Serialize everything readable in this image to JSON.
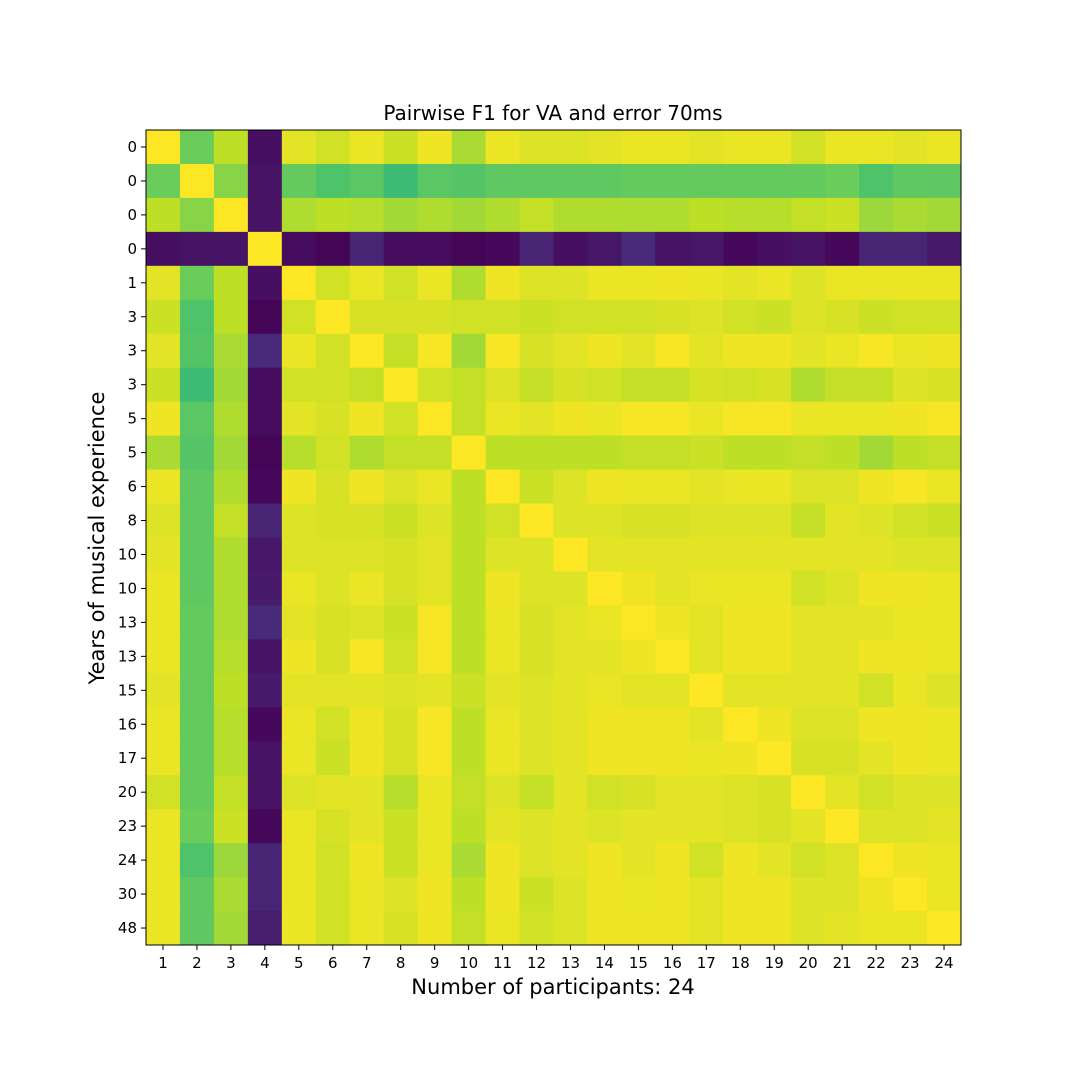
{
  "chart_data": {
    "type": "heatmap",
    "title": "Pairwise F1 for VA and error 70ms",
    "xlabel": "Number of participants: 24",
    "ylabel": "Years of musical experience",
    "colormap": "viridis",
    "value_note_range": [
      0,
      1
    ],
    "x_tick_labels": [
      "1",
      "2",
      "3",
      "4",
      "5",
      "6",
      "7",
      "8",
      "9",
      "10",
      "11",
      "12",
      "13",
      "14",
      "15",
      "16",
      "17",
      "18",
      "19",
      "20",
      "21",
      "22",
      "23",
      "24"
    ],
    "y_tick_labels": [
      "0",
      "0",
      "0",
      "0",
      "1",
      "3",
      "3",
      "3",
      "5",
      "5",
      "6",
      "8",
      "10",
      "10",
      "13",
      "13",
      "15",
      "16",
      "17",
      "20",
      "23",
      "24",
      "30",
      "48"
    ],
    "grid": false,
    "legend": "none",
    "values": [
      [
        1,
        0.77,
        0.9,
        0.04,
        0.96,
        0.93,
        0.97,
        0.92,
        0.98,
        0.87,
        0.97,
        0.95,
        0.95,
        0.96,
        0.97,
        0.97,
        0.96,
        0.97,
        0.97,
        0.93,
        0.97,
        0.97,
        0.96,
        0.97
      ],
      [
        0.77,
        1,
        0.82,
        0.05,
        0.76,
        0.72,
        0.74,
        0.68,
        0.74,
        0.73,
        0.75,
        0.75,
        0.75,
        0.75,
        0.76,
        0.76,
        0.76,
        0.76,
        0.76,
        0.76,
        0.77,
        0.72,
        0.75,
        0.75
      ],
      [
        0.9,
        0.82,
        1,
        0.05,
        0.88,
        0.9,
        0.89,
        0.86,
        0.88,
        0.86,
        0.88,
        0.91,
        0.88,
        0.88,
        0.88,
        0.88,
        0.9,
        0.89,
        0.89,
        0.91,
        0.92,
        0.85,
        0.87,
        0.86
      ],
      [
        0.04,
        0.05,
        0.05,
        1,
        0.03,
        0.01,
        0.1,
        0.03,
        0.03,
        0.01,
        0.02,
        0.1,
        0.04,
        0.06,
        0.12,
        0.05,
        0.06,
        0.02,
        0.04,
        0.05,
        0.02,
        0.1,
        0.1,
        0.07
      ],
      [
        0.96,
        0.77,
        0.9,
        0.04,
        1,
        0.93,
        0.97,
        0.93,
        0.97,
        0.88,
        0.98,
        0.95,
        0.95,
        0.97,
        0.97,
        0.98,
        0.97,
        0.96,
        0.97,
        0.95,
        0.97,
        0.97,
        0.97,
        0.97
      ],
      [
        0.92,
        0.72,
        0.9,
        0.01,
        0.93,
        1,
        0.94,
        0.94,
        0.94,
        0.93,
        0.93,
        0.92,
        0.93,
        0.93,
        0.93,
        0.94,
        0.95,
        0.93,
        0.92,
        0.95,
        0.94,
        0.92,
        0.93,
        0.93
      ],
      [
        0.96,
        0.73,
        0.87,
        0.12,
        0.97,
        0.93,
        1,
        0.91,
        0.99,
        0.86,
        0.99,
        0.94,
        0.96,
        0.98,
        0.96,
        0.99,
        0.96,
        0.98,
        0.98,
        0.96,
        0.97,
        0.99,
        0.97,
        0.98
      ],
      [
        0.92,
        0.68,
        0.86,
        0.03,
        0.93,
        0.93,
        0.91,
        1,
        0.93,
        0.91,
        0.95,
        0.91,
        0.94,
        0.93,
        0.91,
        0.91,
        0.94,
        0.93,
        0.94,
        0.88,
        0.91,
        0.91,
        0.95,
        0.94
      ],
      [
        0.98,
        0.74,
        0.88,
        0.03,
        0.96,
        0.94,
        0.98,
        0.93,
        1,
        0.91,
        0.97,
        0.96,
        0.98,
        0.97,
        0.99,
        0.99,
        0.97,
        0.99,
        0.99,
        0.97,
        0.97,
        0.97,
        0.98,
        0.99
      ],
      [
        0.87,
        0.73,
        0.86,
        0.01,
        0.89,
        0.93,
        0.88,
        0.91,
        0.91,
        1,
        0.9,
        0.9,
        0.9,
        0.9,
        0.91,
        0.91,
        0.92,
        0.9,
        0.9,
        0.91,
        0.9,
        0.86,
        0.9,
        0.91
      ],
      [
        0.97,
        0.75,
        0.88,
        0.02,
        0.98,
        0.94,
        0.98,
        0.95,
        0.97,
        0.9,
        1,
        0.92,
        0.95,
        0.98,
        0.97,
        0.97,
        0.96,
        0.97,
        0.97,
        0.95,
        0.95,
        0.98,
        0.99,
        0.97
      ],
      [
        0.95,
        0.75,
        0.91,
        0.1,
        0.95,
        0.94,
        0.94,
        0.92,
        0.95,
        0.9,
        0.93,
        1,
        0.95,
        0.95,
        0.94,
        0.94,
        0.95,
        0.95,
        0.95,
        0.91,
        0.96,
        0.95,
        0.93,
        0.92
      ],
      [
        0.96,
        0.75,
        0.88,
        0.06,
        0.95,
        0.95,
        0.95,
        0.94,
        0.96,
        0.9,
        0.95,
        0.95,
        1,
        0.96,
        0.96,
        0.96,
        0.96,
        0.96,
        0.96,
        0.96,
        0.96,
        0.96,
        0.95,
        0.95
      ],
      [
        0.97,
        0.75,
        0.88,
        0.07,
        0.97,
        0.95,
        0.97,
        0.94,
        0.96,
        0.9,
        0.98,
        0.95,
        0.95,
        1,
        0.98,
        0.96,
        0.97,
        0.97,
        0.97,
        0.93,
        0.95,
        0.98,
        0.98,
        0.97
      ],
      [
        0.97,
        0.76,
        0.88,
        0.12,
        0.96,
        0.94,
        0.95,
        0.92,
        0.99,
        0.9,
        0.97,
        0.94,
        0.96,
        0.97,
        1,
        0.98,
        0.96,
        0.98,
        0.98,
        0.96,
        0.96,
        0.96,
        0.97,
        0.97
      ],
      [
        0.97,
        0.76,
        0.89,
        0.05,
        0.98,
        0.94,
        0.99,
        0.93,
        0.99,
        0.9,
        0.97,
        0.94,
        0.96,
        0.96,
        0.98,
        1,
        0.96,
        0.98,
        0.98,
        0.96,
        0.96,
        0.98,
        0.98,
        0.97
      ],
      [
        0.96,
        0.76,
        0.9,
        0.07,
        0.96,
        0.96,
        0.96,
        0.95,
        0.96,
        0.92,
        0.96,
        0.95,
        0.96,
        0.97,
        0.96,
        0.96,
        1,
        0.96,
        0.96,
        0.96,
        0.96,
        0.93,
        0.97,
        0.95
      ],
      [
        0.97,
        0.76,
        0.89,
        0.02,
        0.97,
        0.93,
        0.98,
        0.94,
        0.99,
        0.9,
        0.97,
        0.95,
        0.96,
        0.98,
        0.98,
        0.98,
        0.96,
        1,
        0.98,
        0.95,
        0.95,
        0.98,
        0.98,
        0.97
      ],
      [
        0.97,
        0.76,
        0.89,
        0.05,
        0.97,
        0.92,
        0.98,
        0.94,
        0.99,
        0.9,
        0.97,
        0.95,
        0.96,
        0.98,
        0.98,
        0.98,
        0.97,
        0.98,
        1,
        0.94,
        0.94,
        0.96,
        0.98,
        0.97
      ],
      [
        0.93,
        0.76,
        0.91,
        0.05,
        0.95,
        0.96,
        0.96,
        0.89,
        0.97,
        0.91,
        0.95,
        0.91,
        0.96,
        0.93,
        0.94,
        0.96,
        0.96,
        0.95,
        0.94,
        1,
        0.96,
        0.93,
        0.95,
        0.95
      ],
      [
        0.97,
        0.77,
        0.92,
        0.02,
        0.97,
        0.94,
        0.96,
        0.92,
        0.97,
        0.9,
        0.96,
        0.95,
        0.96,
        0.95,
        0.96,
        0.96,
        0.96,
        0.95,
        0.94,
        0.96,
        1,
        0.95,
        0.95,
        0.96
      ],
      [
        0.97,
        0.72,
        0.85,
        0.1,
        0.97,
        0.93,
        0.98,
        0.92,
        0.97,
        0.87,
        0.98,
        0.95,
        0.96,
        0.98,
        0.96,
        0.98,
        0.93,
        0.98,
        0.96,
        0.93,
        0.95,
        1,
        0.98,
        0.97
      ],
      [
        0.97,
        0.75,
        0.87,
        0.1,
        0.97,
        0.93,
        0.97,
        0.95,
        0.98,
        0.9,
        0.98,
        0.92,
        0.95,
        0.98,
        0.97,
        0.98,
        0.96,
        0.98,
        0.98,
        0.95,
        0.95,
        0.98,
        1,
        0.97
      ],
      [
        0.97,
        0.75,
        0.86,
        0.08,
        0.97,
        0.93,
        0.97,
        0.94,
        0.98,
        0.91,
        0.97,
        0.93,
        0.95,
        0.98,
        0.98,
        0.98,
        0.96,
        0.98,
        0.98,
        0.95,
        0.96,
        0.97,
        0.97,
        1
      ]
    ]
  }
}
